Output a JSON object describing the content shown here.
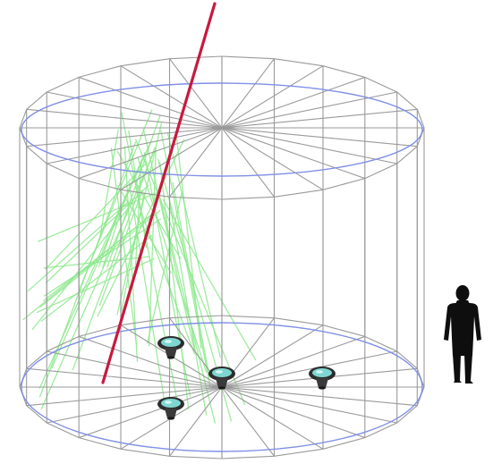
{
  "diagram": {
    "colors": {
      "background": "#ffffff",
      "wireframe": "#9a9a9a",
      "inner_rim": "#7f8fe6",
      "muon_track": "#c8193f",
      "cherenkov_light": "#8ee88e",
      "pmt_body": "#3a3a3a",
      "pmt_glass": "#7fd6d0",
      "person": "#0e0e0e"
    },
    "icons": [
      "cylinder-tank",
      "muon-track",
      "cherenkov-ray",
      "photomultiplier-tube",
      "person-silhouette"
    ],
    "pmt_count": 4
  }
}
